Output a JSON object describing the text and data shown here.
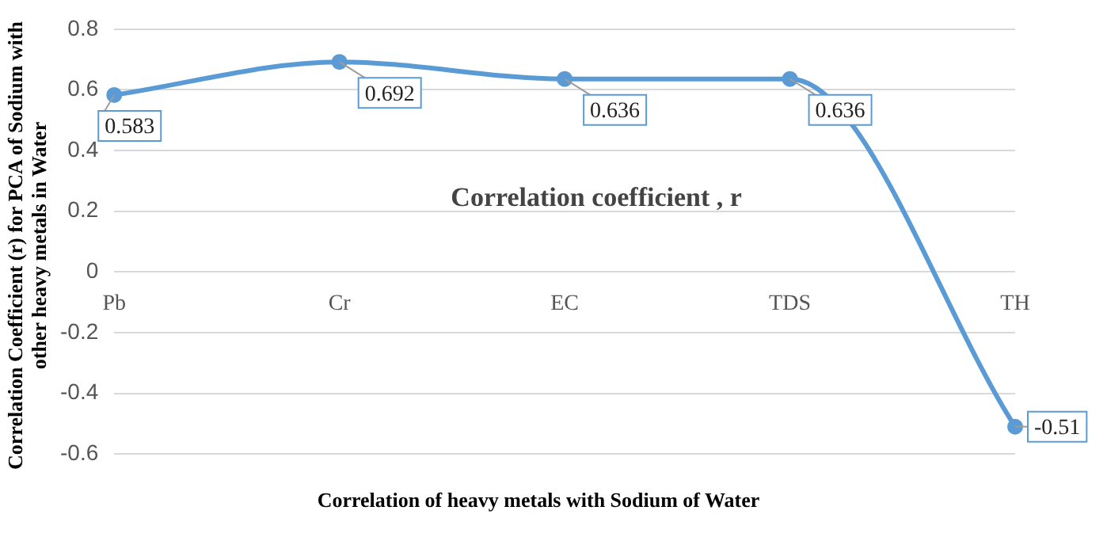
{
  "chart_data": {
    "type": "line",
    "title": "Correlation coefficient , r",
    "xlabel": "Correlation of heavy metals with Sodium of Water",
    "ylabel": "Correlation Coefficient (r) for PCA of Sodium with other heavy metals in Water",
    "categories": [
      "Pb",
      "Cr",
      "EC",
      "TDS",
      "TH"
    ],
    "series": [
      {
        "color": "#5b9bd5",
        "values": [
          0.583,
          0.692,
          0.636,
          0.636,
          -0.51
        ]
      }
    ],
    "ylim": [
      -0.6,
      0.8
    ],
    "yticks": [
      -0.6,
      -0.4,
      -0.2,
      0,
      0.2,
      0.4,
      0.6,
      0.8
    ],
    "grid": "y",
    "marker": "circle",
    "line_style": "solid",
    "data_labels": true
  }
}
